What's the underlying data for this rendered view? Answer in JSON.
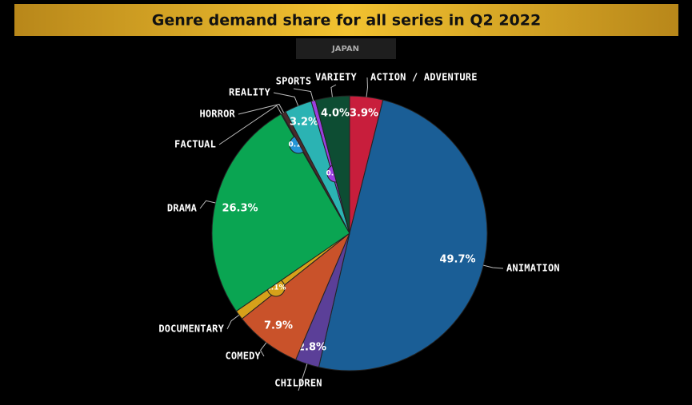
{
  "chart_data": {
    "type": "pie",
    "title": "Genre demand share for all series in Q2 2022",
    "subtitle": "JAPAN",
    "categories": [
      "ACTION / ADVENTURE",
      "ANIMATION",
      "CHILDREN",
      "COMEDY",
      "DOCUMENTARY",
      "DRAMA",
      "FACTUAL",
      "HORROR",
      "REALITY",
      "SPORTS",
      "VARIETY"
    ],
    "values": [
      3.9,
      49.7,
      2.8,
      7.9,
      1.1,
      26.3,
      0.1,
      0.5,
      3.2,
      0.5,
      4.0
    ],
    "value_labels": [
      "3.9%",
      "49.7%",
      "2.8%",
      "7.9%",
      "1.1%",
      "26.3%",
      "0.1%",
      null,
      "3.2%",
      "0.5%",
      "4.0%"
    ],
    "colors": [
      "#c81e3c",
      "#1a5e96",
      "#5b3f98",
      "#c9522a",
      "#d6a11a",
      "#0aa552",
      "#2394d6",
      "#4a2a2a",
      "#2bb3b3",
      "#9b3fe0",
      "#0d4d33"
    ]
  }
}
